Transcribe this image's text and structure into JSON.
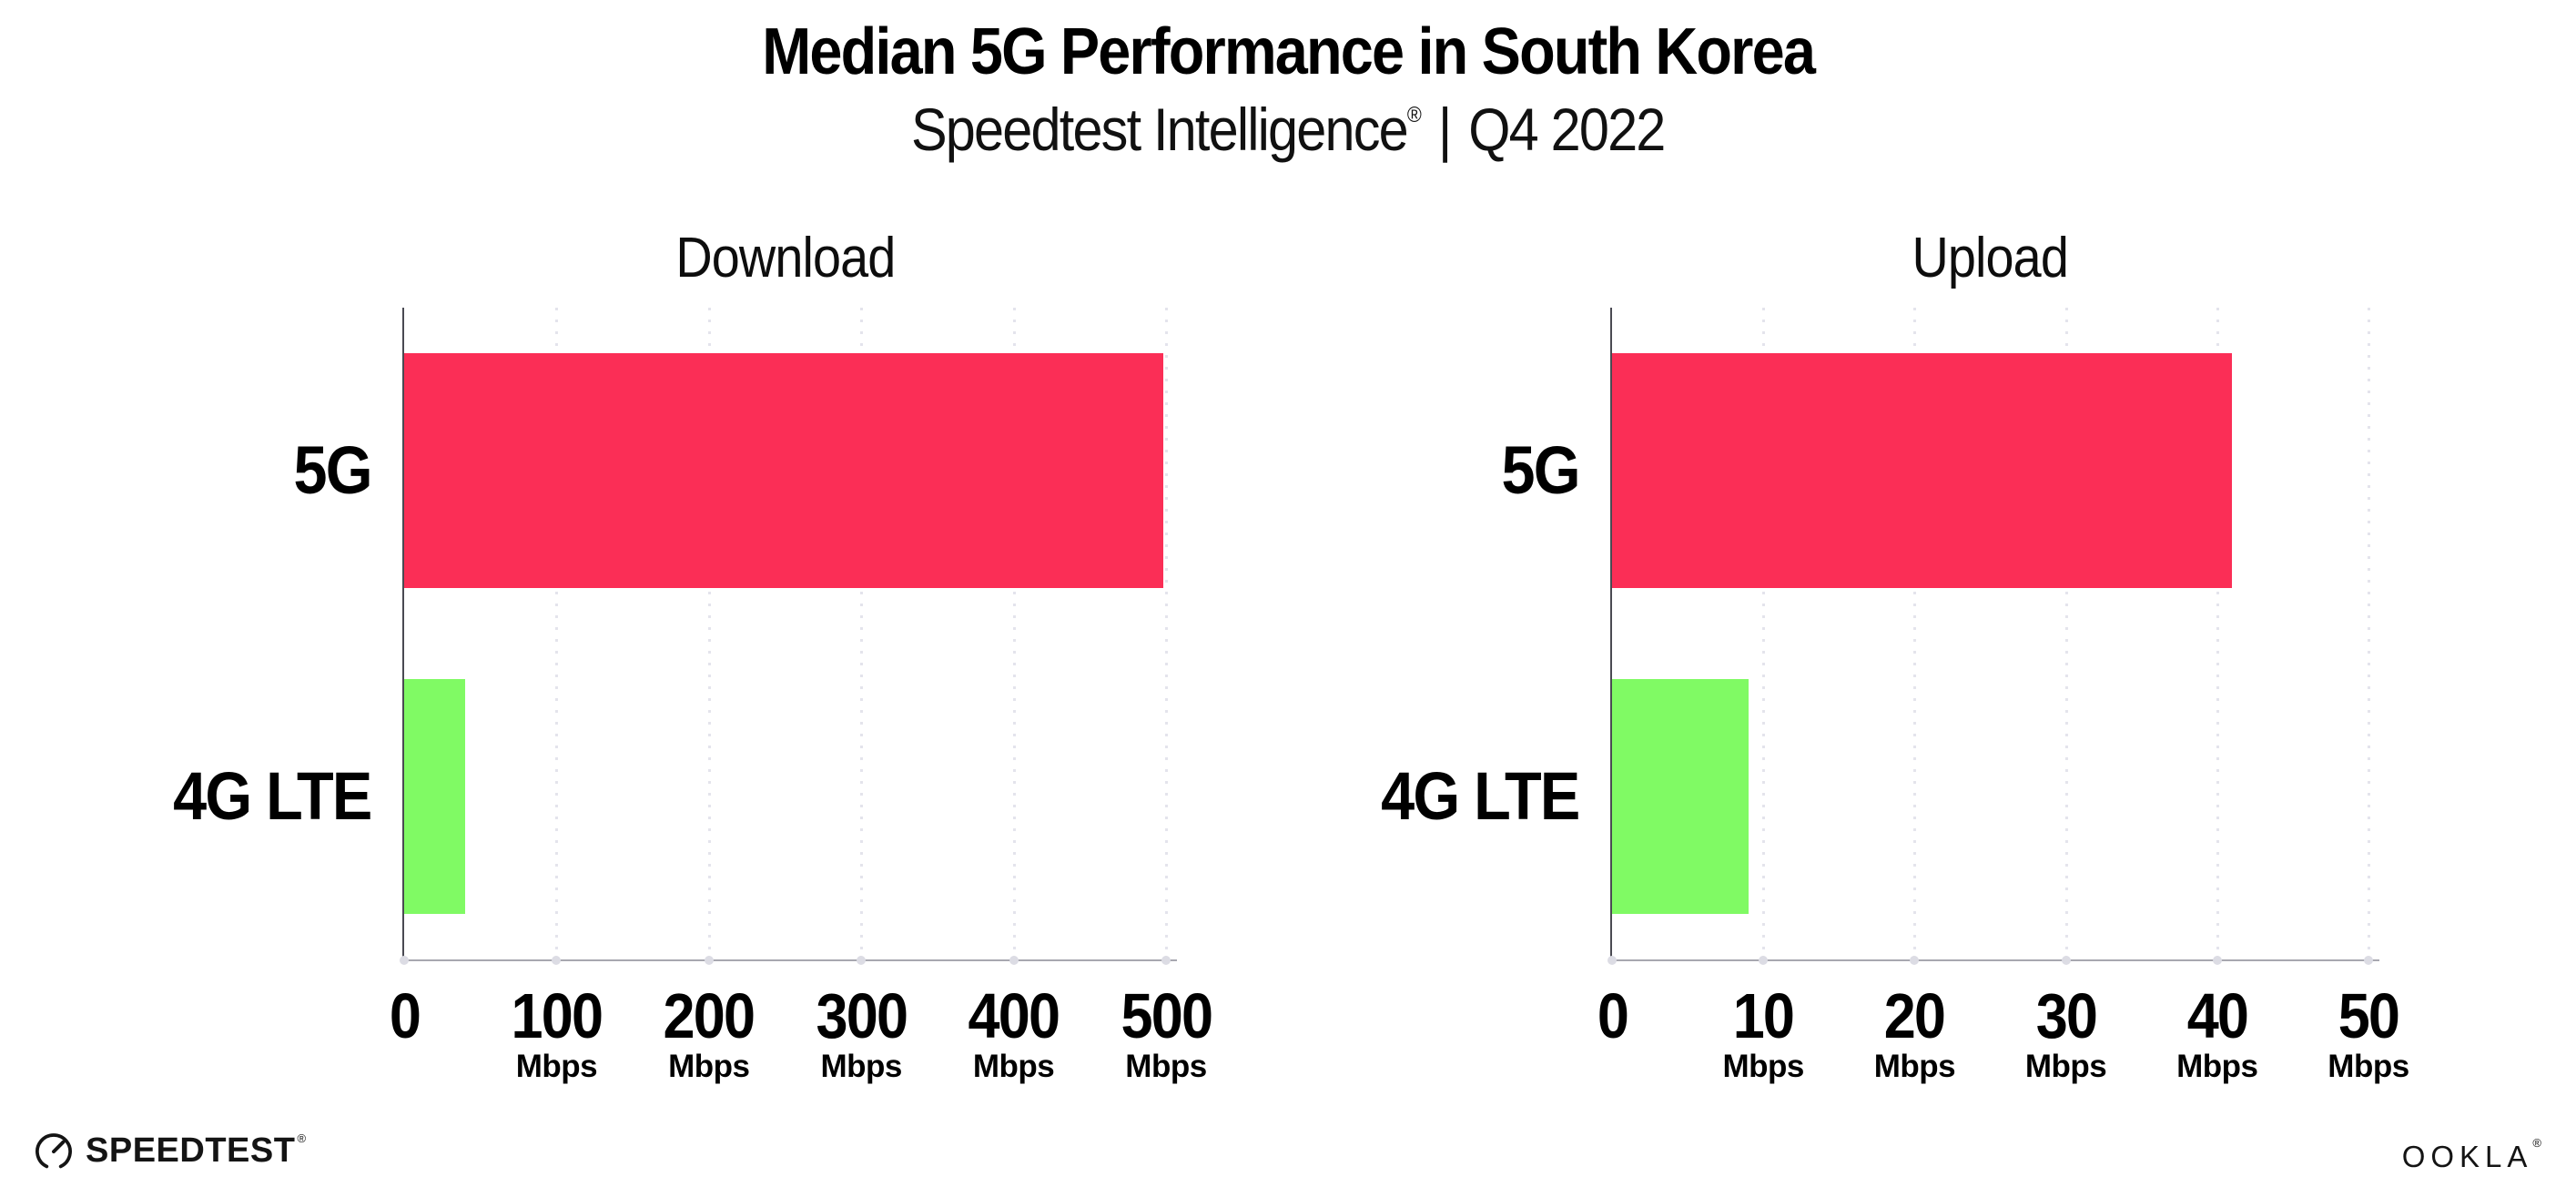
{
  "header": {
    "title": "Median 5G Performance in South Korea",
    "subtitle_brand": "Speedtest Intelligence",
    "subtitle_registered": "®",
    "subtitle_separator": "|",
    "subtitle_period": "Q4 2022"
  },
  "chart_data": [
    {
      "type": "bar",
      "orientation": "horizontal",
      "title": "Download",
      "categories": [
        "5G",
        "4G LTE"
      ],
      "values": [
        498,
        40
      ],
      "unit": "Mbps",
      "xlim": [
        0,
        500
      ],
      "xticks": [
        0,
        100,
        200,
        300,
        400,
        500
      ],
      "bar_colors": [
        "#FB2E56",
        "#80FA64"
      ],
      "grid": "dotted-vertical",
      "legend": "none"
    },
    {
      "type": "bar",
      "orientation": "horizontal",
      "title": "Upload",
      "categories": [
        "5G",
        "4G LTE"
      ],
      "values": [
        41,
        9
      ],
      "unit": "Mbps",
      "xlim": [
        0,
        50
      ],
      "xticks": [
        0,
        10,
        20,
        30,
        40,
        50
      ],
      "bar_colors": [
        "#FB2E56",
        "#80FA64"
      ],
      "grid": "dotted-vertical",
      "legend": "none"
    }
  ],
  "footer": {
    "speedtest_logo_text": "SPEEDTEST",
    "speedtest_registered": "®",
    "ookla_logo_text": "OOKLA",
    "ookla_registered": "®"
  },
  "colors": {
    "bar_5g": "#FB2E56",
    "bar_4g_lte": "#80FA64",
    "gridline": "#E4E4EC",
    "x_axis": "#A8A8B0",
    "y_axis": "#4A4A52",
    "text": "#000000"
  }
}
